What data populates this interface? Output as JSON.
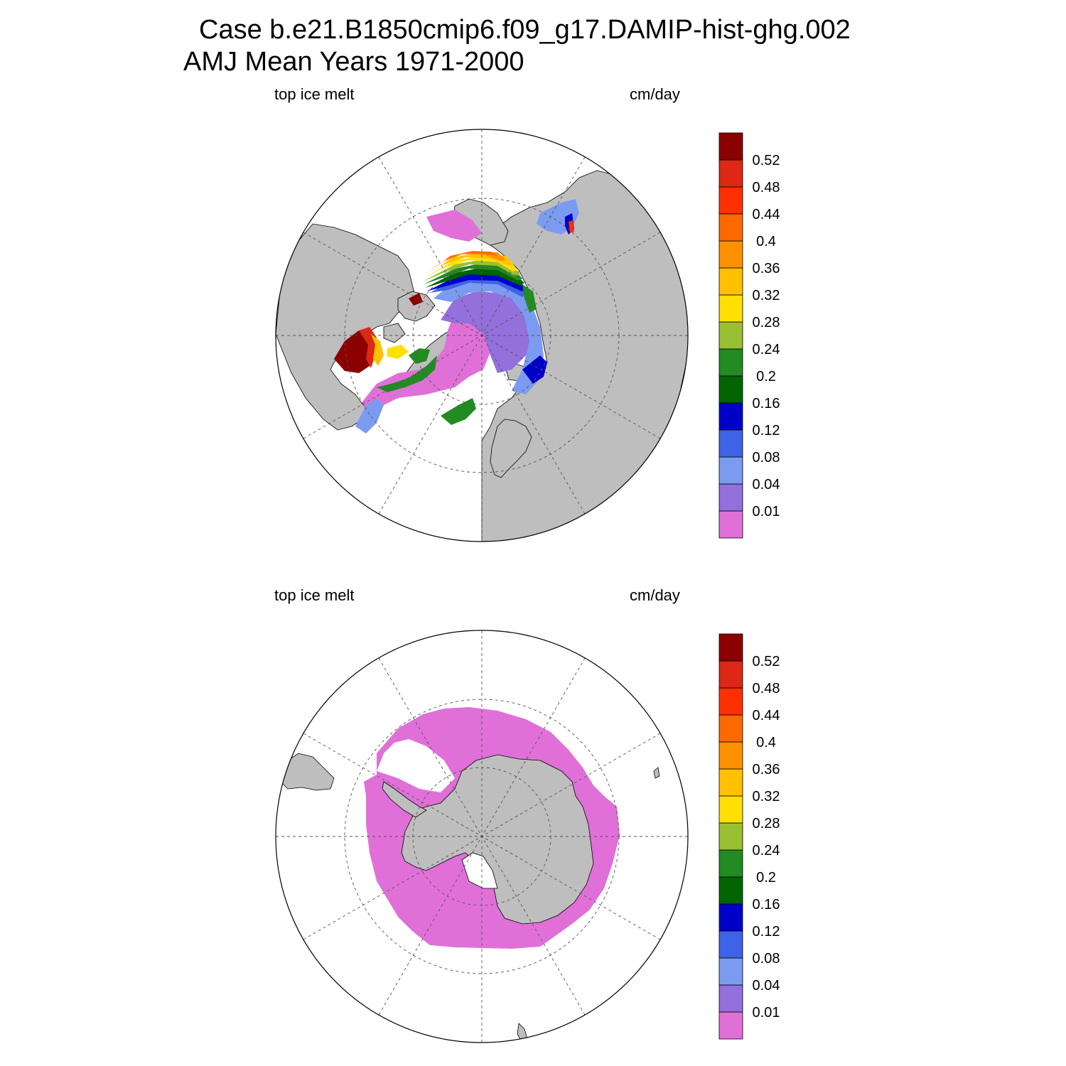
{
  "figure": {
    "title_line1": "Case b.e21.B1850cmip6.f09_g17.DAMIP-hist-ghg.002",
    "title_line2": "AMJ Mean   Years 1971-2000"
  },
  "colorbar": {
    "colors": [
      "#e070d8",
      "#9370db",
      "#7b9bf0",
      "#3e63e8",
      "#0000c8",
      "#006400",
      "#228b22",
      "#9bbf32",
      "#ffe000",
      "#ffc000",
      "#ff9000",
      "#ff6800",
      "#ff3000",
      "#dc2814",
      "#8b0000"
    ],
    "labels": [
      "0.01",
      "0.04",
      "0.08",
      "0.12",
      "0.16",
      "0.2",
      "0.24",
      "0.28",
      "0.32",
      "0.36",
      "0.4",
      "0.44",
      "0.48",
      "0.52"
    ]
  },
  "panels": [
    {
      "id": "north",
      "hemisphere": "Northern Hemisphere",
      "left_label": "top ice melt",
      "right_label": "cm/day"
    },
    {
      "id": "south",
      "hemisphere": "Southern Hemisphere",
      "left_label": "top ice melt",
      "right_label": "cm/day"
    }
  ]
}
